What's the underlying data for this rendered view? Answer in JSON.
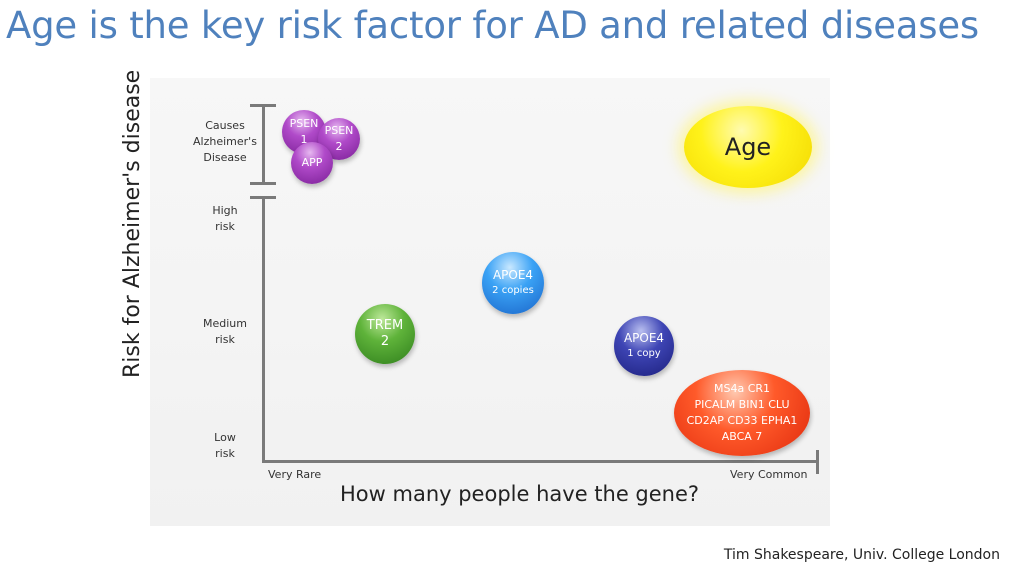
{
  "title": "Age is the key risk factor for AD and related diseases",
  "credit": "Tim Shakespeare, Univ. College London",
  "figure": {
    "y_axis_label": "Risk for Alzheimer's disease",
    "x_axis_label": "How many people have the gene?",
    "y_ticks": {
      "causes": [
        "Causes",
        "Alzheimer's",
        "Disease"
      ],
      "high": [
        "High",
        "risk"
      ],
      "medium": [
        "Medium",
        "risk"
      ],
      "low": [
        "Low",
        "risk"
      ]
    },
    "x_ticks": {
      "rare": "Very Rare",
      "common": "Very Common"
    },
    "bubbles": {
      "psen1": [
        "PSEN",
        "1"
      ],
      "psen2": [
        "PSEN",
        "2"
      ],
      "app": [
        "APP"
      ],
      "trem2": [
        "TREM",
        "2"
      ],
      "apoe4_2": [
        "APOE4",
        "2 copies"
      ],
      "apoe4_1": [
        "APOE4",
        "1 copy"
      ],
      "cluster": [
        "MS4a CR1",
        "PICALM BIN1 CLU",
        "CD2AP CD33 EPHA1",
        "ABCA 7"
      ],
      "age": [
        "Age"
      ]
    },
    "colors": {
      "title": "#4f81bd",
      "purple": "#9b33b8",
      "green": "#4aa52e",
      "blue": "#2b8ae8",
      "navy": "#2a2f9a",
      "red": "#f0401a",
      "yellow": "#fff21a"
    }
  }
}
